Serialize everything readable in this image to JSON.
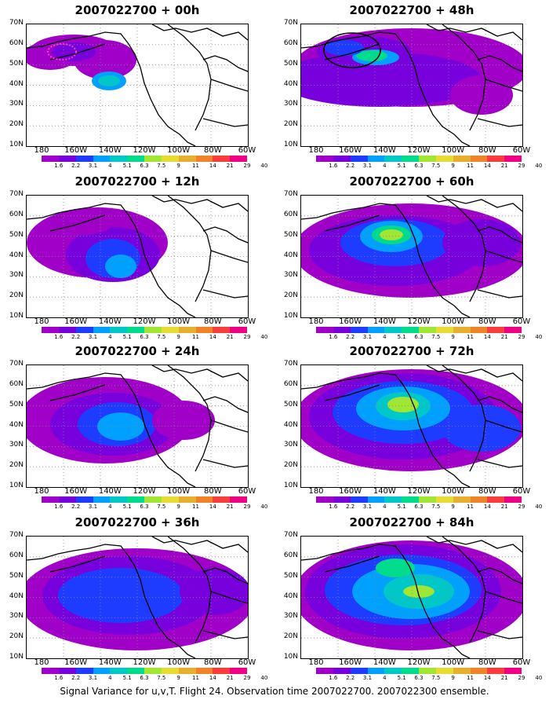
{
  "figure": {
    "caption": "Signal Variance for u,v,T. Flight 24. Observation time 2007022700. 2007022300 ensemble."
  },
  "axes": {
    "lat_labels": [
      "10N",
      "20N",
      "30N",
      "40N",
      "50N",
      "60N",
      "70N"
    ],
    "lon_labels": [
      "180",
      "160W",
      "140W",
      "120W",
      "100W",
      "80W",
      "60W"
    ]
  },
  "colorbar": {
    "labels": [
      "1.6",
      "2.2",
      "3.1",
      "4",
      "5.1",
      "6.3",
      "7.5",
      "9",
      "11",
      "14",
      "21",
      "29",
      "40"
    ],
    "colors": [
      "#a000c8",
      "#7800dc",
      "#1e3cff",
      "#00a0ff",
      "#00c8c8",
      "#00dc8c",
      "#a0e632",
      "#e6dc32",
      "#e6af2d",
      "#f08228",
      "#fa3c3c",
      "#f00082"
    ]
  },
  "panels": [
    {
      "title": "2007022700 + 00h"
    },
    {
      "title": "2007022700 + 48h"
    },
    {
      "title": "2007022700 + 12h"
    },
    {
      "title": "2007022700 + 60h"
    },
    {
      "title": "2007022700 + 24h"
    },
    {
      "title": "2007022700 + 72h"
    },
    {
      "title": "2007022700 + 36h"
    },
    {
      "title": "2007022700 + 84h"
    }
  ],
  "colors": {
    "coast": "#000000",
    "grid": "#888888"
  }
}
